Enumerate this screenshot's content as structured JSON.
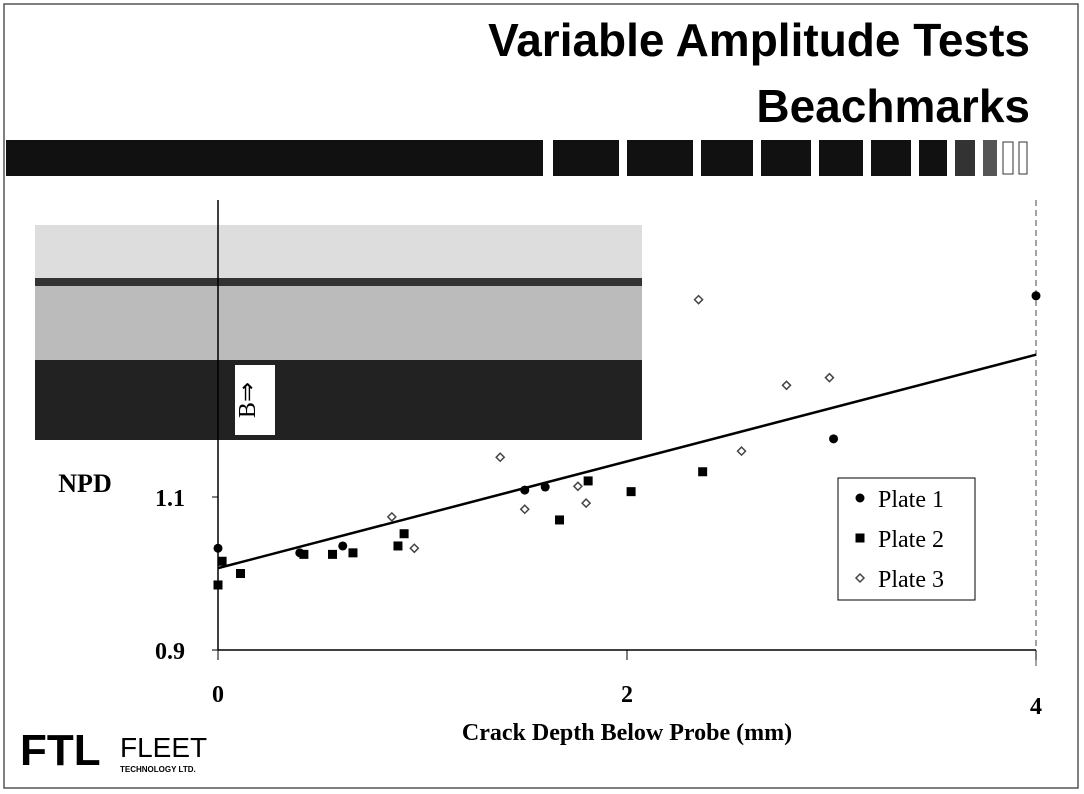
{
  "header": {
    "title_lines": [
      "Variable Amplitude Tests",
      "Beachmarks"
    ]
  },
  "logo": {
    "mark": "FTL",
    "name": "FLEET",
    "subtitle": "TECHNOLOGY LTD."
  },
  "chart_data": {
    "type": "scatter",
    "y_label": "NPD",
    "x_label": "Crack Depth Below Probe (mm)",
    "annotation": "B⇒",
    "xlim": [
      0,
      4
    ],
    "xticks": [
      0,
      2,
      4
    ],
    "ylim": [
      0.9,
      1.5
    ],
    "yticks": [
      0.9,
      1.1
    ],
    "legend": "right",
    "series": [
      {
        "name": "Plate 1",
        "color": "#000000",
        "marker": "circle",
        "x": [
          0,
          0.4,
          0.61,
          1.5,
          1.6,
          3.01,
          4.0
        ],
        "values": [
          1.033,
          1.027,
          1.036,
          1.109,
          1.113,
          1.176,
          1.363
        ]
      },
      {
        "name": "Plate 2",
        "color": "#000000",
        "marker": "square",
        "x": [
          0.02,
          0,
          0.11,
          0.42,
          0.56,
          0.66,
          0.88,
          0.91,
          1.67,
          1.81,
          2.02,
          2.37
        ],
        "values": [
          1.016,
          0.985,
          1.0,
          1.025,
          1.025,
          1.027,
          1.036,
          1.052,
          1.07,
          1.121,
          1.107,
          1.133
        ]
      },
      {
        "name": "Plate 3",
        "color": "#444444",
        "marker": "diamond",
        "x": [
          0.85,
          0.96,
          1.38,
          1.5,
          1.76,
          1.8,
          2.35,
          2.56,
          2.78,
          2.99
        ],
        "values": [
          1.074,
          1.033,
          1.152,
          1.084,
          1.114,
          1.092,
          1.358,
          1.16,
          1.246,
          1.256
        ]
      }
    ],
    "fit": {
      "x": [
        0,
        4
      ],
      "values": [
        1.007,
        1.286
      ],
      "color": "#000000"
    }
  }
}
